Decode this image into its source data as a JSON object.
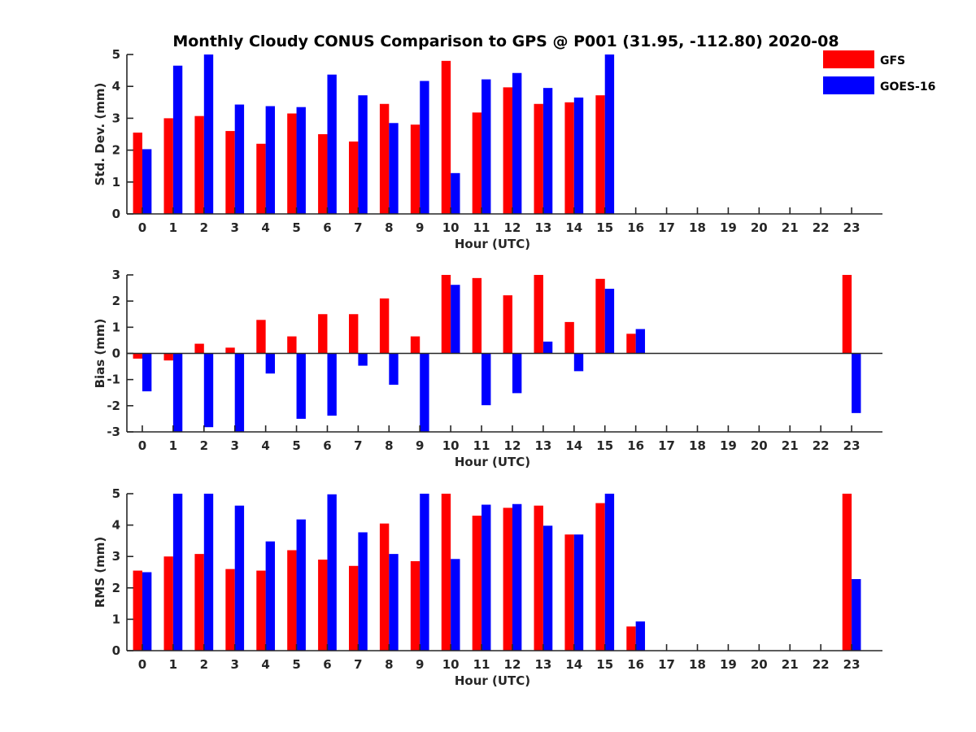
{
  "chart_data": {
    "type": "bar",
    "title": "Monthly Cloudy CONUS Comparison to GPS @ P001 (31.95, -112.80) 2020-08",
    "legend": {
      "placement": "top-right",
      "entries": [
        {
          "name": "GFS",
          "color": "#ff0000"
        },
        {
          "name": "GOES-16",
          "color": "#0000ff"
        }
      ]
    },
    "categories": [
      "0",
      "1",
      "2",
      "3",
      "4",
      "5",
      "6",
      "7",
      "8",
      "9",
      "10",
      "11",
      "12",
      "13",
      "14",
      "15",
      "16",
      "17",
      "18",
      "19",
      "20",
      "21",
      "22",
      "23"
    ],
    "panels": [
      {
        "id": "stddev",
        "ylabel": "Std. Dev. (mm)",
        "xlabel": "Hour (UTC)",
        "ylim": [
          0,
          5
        ],
        "yticks": [
          0,
          1,
          2,
          3,
          4,
          5
        ],
        "series": [
          {
            "name": "GFS",
            "values": [
              2.55,
              3.0,
              3.07,
              2.6,
              2.2,
              3.15,
              2.5,
              2.27,
              3.45,
              2.8,
              4.8,
              3.18,
              3.97,
              3.45,
              3.5,
              3.72,
              null,
              null,
              null,
              null,
              null,
              null,
              null,
              null
            ]
          },
          {
            "name": "GOES-16",
            "values": [
              2.03,
              4.65,
              5.0,
              3.43,
              3.38,
              3.35,
              4.37,
              3.72,
              2.85,
              4.17,
              1.28,
              4.22,
              4.42,
              3.95,
              3.65,
              5.0,
              null,
              null,
              null,
              null,
              null,
              null,
              null,
              null
            ]
          }
        ]
      },
      {
        "id": "bias",
        "ylabel": "Bias (mm)",
        "xlabel": "Hour (UTC)",
        "ylim": [
          -3,
          3
        ],
        "yticks": [
          -3,
          -2,
          -1,
          0,
          1,
          2,
          3
        ],
        "series": [
          {
            "name": "GFS",
            "values": [
              -0.2,
              -0.27,
              0.37,
              0.22,
              1.28,
              0.65,
              1.5,
              1.5,
              2.1,
              0.65,
              3.0,
              2.88,
              2.22,
              3.0,
              1.2,
              2.85,
              0.75,
              null,
              null,
              null,
              null,
              null,
              null,
              3.0
            ]
          },
          {
            "name": "GOES-16",
            "values": [
              -1.45,
              -3.0,
              -2.82,
              -3.0,
              -0.77,
              -2.5,
              -2.38,
              -0.47,
              -1.2,
              -3.0,
              2.62,
              -1.98,
              -1.52,
              0.45,
              -0.68,
              2.47,
              0.93,
              null,
              null,
              null,
              null,
              null,
              null,
              -2.28
            ]
          }
        ]
      },
      {
        "id": "rms",
        "ylabel": "RMS (mm)",
        "xlabel": "Hour (UTC)",
        "ylim": [
          0,
          5
        ],
        "yticks": [
          0,
          1,
          2,
          3,
          4,
          5
        ],
        "series": [
          {
            "name": "GFS",
            "values": [
              2.55,
              3.0,
              3.08,
              2.6,
              2.55,
              3.2,
              2.9,
              2.7,
              4.05,
              2.85,
              5.0,
              4.3,
              4.55,
              4.62,
              3.7,
              4.7,
              0.77,
              null,
              null,
              null,
              null,
              null,
              null,
              5.0
            ]
          },
          {
            "name": "GOES-16",
            "values": [
              2.5,
              5.0,
              5.0,
              4.62,
              3.48,
              4.18,
              4.98,
              3.77,
              3.08,
              5.0,
              2.92,
              4.65,
              4.67,
              3.98,
              3.7,
              5.0,
              0.93,
              null,
              null,
              null,
              null,
              null,
              null,
              2.28
            ]
          }
        ]
      }
    ]
  }
}
